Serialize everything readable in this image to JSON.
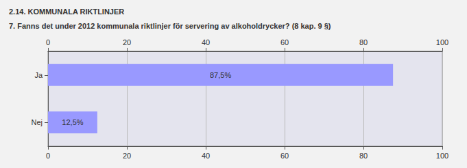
{
  "chart_data": {
    "type": "bar",
    "title": "2.14. KOMMUNALA RIKTLINJER",
    "subtitle": "7. Fanns det under 2012 kommunala riktlinjer för servering av alkoholdrycker? (8 kap. 9 §)",
    "orientation": "horizontal",
    "categories": [
      "Ja",
      "Nej"
    ],
    "values": [
      87.5,
      12.5
    ],
    "value_labels": [
      "87,5%",
      "12,5%"
    ],
    "data_labels": true,
    "color": "#9999ff",
    "xlim": [
      0,
      100
    ],
    "xticks": [
      0,
      20,
      40,
      60,
      80,
      100
    ],
    "grid": true
  }
}
